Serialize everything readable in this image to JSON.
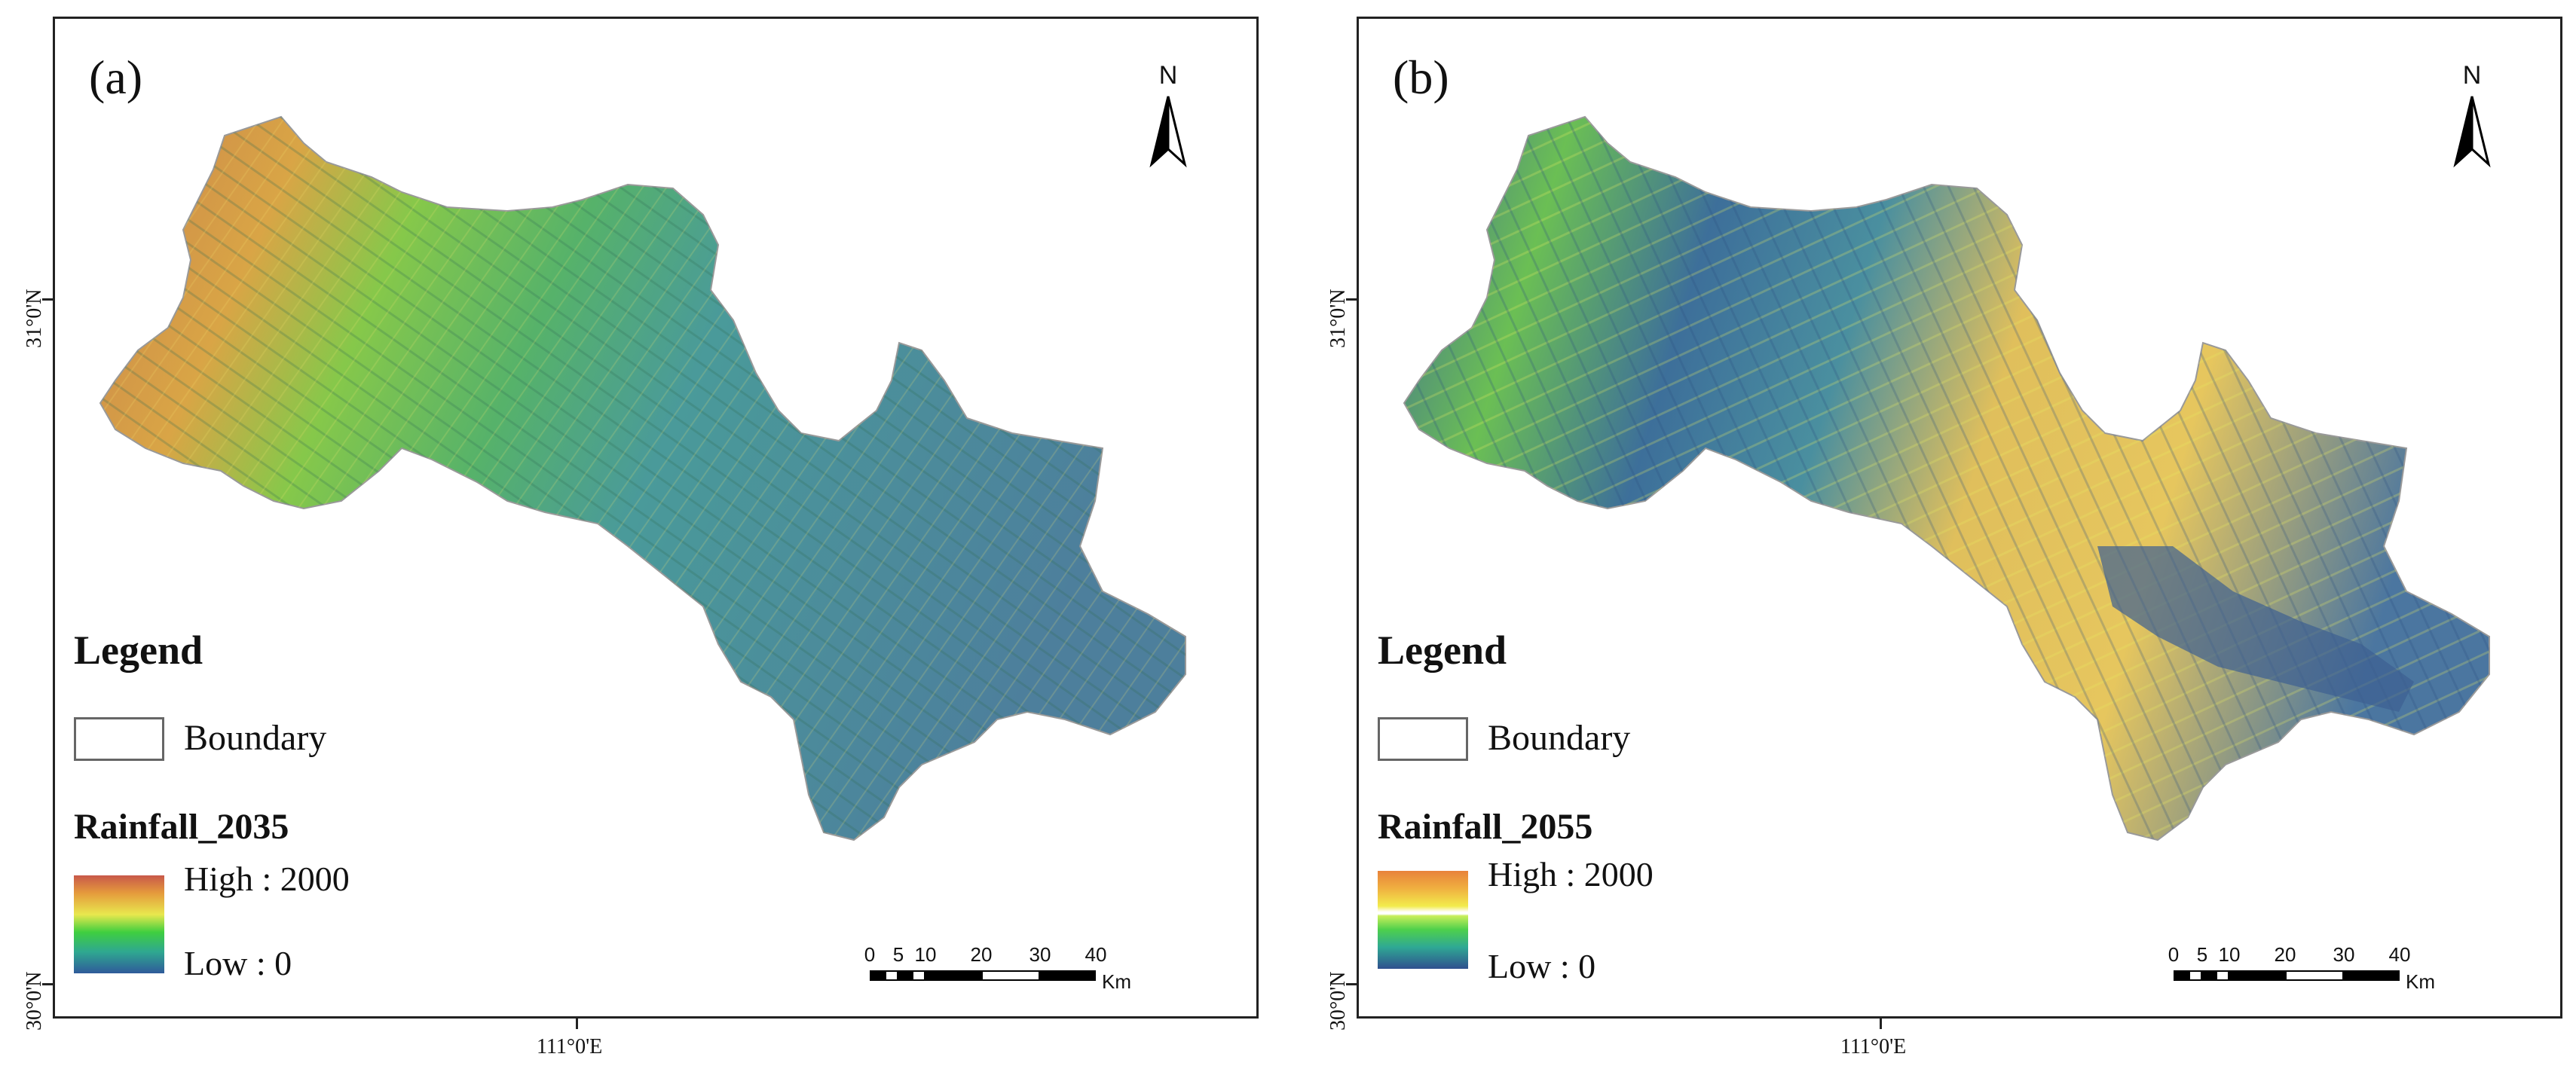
{
  "panels": [
    {
      "label": "(a)",
      "north": "N",
      "legend_title": "Legend",
      "boundary_label": "Boundary",
      "raster_title": "Rainfall_2035",
      "high_label": "High : 2000",
      "low_label": "Low : 0",
      "lat_tick_top": "31°0'N",
      "lat_tick_bottom": "30°0'N",
      "lon_tick": "111°0'E",
      "scale_numbers": [
        "0",
        "5",
        "10",
        "20",
        "30",
        "40"
      ],
      "scale_unit": "Km",
      "colors": {
        "west": "#d08a45",
        "mid": "#7cc64a",
        "east": "#4f8fa0"
      }
    },
    {
      "label": "(b)",
      "north": "N",
      "legend_title": "Legend",
      "boundary_label": "Boundary",
      "raster_title": "Rainfall_2055",
      "high_label": "High : 2000",
      "low_label": "Low : 0",
      "lat_tick_top": "31°0'N",
      "lat_tick_bottom": "30°0'N",
      "lon_tick": "111°0'E",
      "scale_numbers": [
        "0",
        "5",
        "10",
        "20",
        "30",
        "40"
      ],
      "scale_unit": "Km",
      "colors": {
        "west": "#3d6f9a",
        "mid": "#8fd046",
        "east": "#e5c25a"
      }
    }
  ]
}
